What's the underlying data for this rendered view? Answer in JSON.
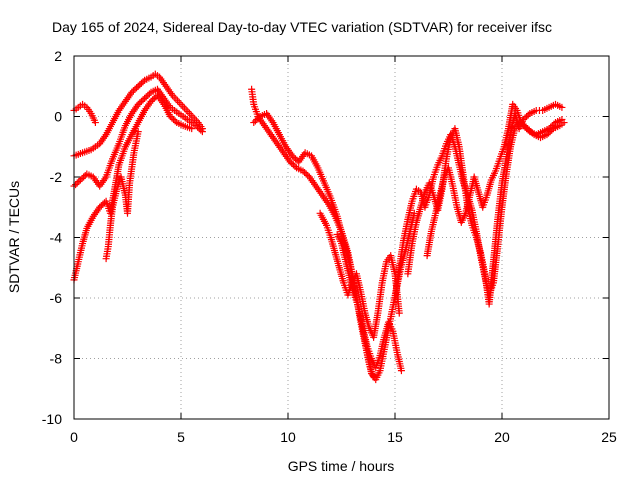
{
  "chart_data": {
    "type": "scatter",
    "title": "Day 165 of 2024, Sidereal Day-to-day VTEC variation (SDTVAR) for receiver ifsc",
    "xlabel": "GPS time / hours",
    "ylabel": "SDTVAR / TECUs",
    "xlim": [
      0,
      25
    ],
    "ylim": [
      -10,
      2
    ],
    "xticks": [
      0,
      5,
      10,
      15,
      20,
      25
    ],
    "yticks": [
      -10,
      -8,
      -6,
      -4,
      -2,
      0,
      2
    ],
    "grid": true,
    "marker": "+",
    "color": "#ff0000",
    "series": [
      {
        "points": [
          [
            0.0,
            0.2
          ],
          [
            0.2,
            0.3
          ],
          [
            0.4,
            0.4
          ],
          [
            0.6,
            0.3
          ],
          [
            0.8,
            0.1
          ],
          [
            1.0,
            -0.2
          ],
          [
            0.0,
            -1.3
          ],
          [
            0.4,
            -1.2
          ],
          [
            0.8,
            -1.1
          ],
          [
            1.2,
            -0.9
          ],
          [
            1.5,
            -0.6
          ],
          [
            1.8,
            -0.2
          ],
          [
            2.1,
            0.2
          ],
          [
            2.4,
            0.5
          ],
          [
            2.7,
            0.8
          ],
          [
            3.0,
            1.0
          ],
          [
            3.3,
            1.2
          ],
          [
            3.6,
            1.3
          ],
          [
            3.8,
            1.4
          ],
          [
            4.0,
            1.3
          ],
          [
            4.3,
            1.0
          ],
          [
            4.6,
            0.7
          ],
          [
            5.0,
            0.4
          ],
          [
            5.4,
            0.1
          ],
          [
            5.8,
            -0.2
          ],
          [
            6.0,
            -0.4
          ],
          [
            0.0,
            -2.3
          ],
          [
            0.3,
            -2.1
          ],
          [
            0.6,
            -1.9
          ],
          [
            0.9,
            -2.0
          ],
          [
            1.2,
            -2.3
          ],
          [
            1.5,
            -2.0
          ],
          [
            1.8,
            -1.4
          ],
          [
            2.1,
            -0.9
          ],
          [
            2.4,
            -0.3
          ],
          [
            2.7,
            0.1
          ],
          [
            3.0,
            0.4
          ],
          [
            3.3,
            0.6
          ],
          [
            3.6,
            0.8
          ],
          [
            3.9,
            0.9
          ],
          [
            4.2,
            0.6
          ],
          [
            4.5,
            0.3
          ],
          [
            4.9,
            0.1
          ],
          [
            5.3,
            -0.1
          ],
          [
            5.7,
            -0.3
          ],
          [
            6.0,
            -0.5
          ],
          [
            0.0,
            -5.4
          ],
          [
            0.2,
            -4.8
          ],
          [
            0.4,
            -4.2
          ],
          [
            0.6,
            -3.7
          ],
          [
            0.9,
            -3.3
          ],
          [
            1.2,
            -3.0
          ],
          [
            1.5,
            -2.8
          ],
          [
            1.7,
            -3.2
          ],
          [
            1.9,
            -2.4
          ],
          [
            2.1,
            -1.6
          ],
          [
            2.4,
            -1.0
          ],
          [
            2.7,
            -0.6
          ],
          [
            3.0,
            -0.2
          ],
          [
            3.3,
            0.2
          ],
          [
            3.6,
            0.5
          ],
          [
            3.9,
            0.7
          ],
          [
            4.2,
            0.4
          ],
          [
            4.5,
            0.0
          ],
          [
            4.8,
            -0.2
          ],
          [
            5.1,
            -0.3
          ],
          [
            5.5,
            -0.4
          ],
          [
            1.5,
            -4.7
          ],
          [
            1.6,
            -4.3
          ],
          [
            1.7,
            -3.6
          ],
          [
            1.8,
            -3.0
          ],
          [
            2.0,
            -2.4
          ],
          [
            2.2,
            -2.0
          ],
          [
            2.4,
            -2.6
          ],
          [
            2.5,
            -3.2
          ],
          [
            2.6,
            -2.2
          ],
          [
            2.8,
            -1.2
          ],
          [
            3.0,
            -0.5
          ]
        ]
      },
      {
        "points": [
          [
            8.3,
            0.9
          ],
          [
            8.4,
            0.4
          ],
          [
            8.6,
            0.0
          ],
          [
            8.9,
            -0.3
          ],
          [
            9.2,
            -0.6
          ],
          [
            9.5,
            -0.9
          ],
          [
            9.8,
            -1.2
          ],
          [
            10.1,
            -1.5
          ],
          [
            10.4,
            -1.7
          ],
          [
            10.7,
            -1.8
          ],
          [
            11.0,
            -2.0
          ],
          [
            11.3,
            -2.3
          ],
          [
            11.6,
            -2.6
          ],
          [
            11.9,
            -2.9
          ],
          [
            12.2,
            -3.3
          ],
          [
            12.5,
            -3.8
          ],
          [
            12.8,
            -4.5
          ],
          [
            13.0,
            -5.2
          ],
          [
            13.2,
            -6.0
          ],
          [
            13.4,
            -6.8
          ],
          [
            13.6,
            -7.5
          ],
          [
            13.8,
            -8.2
          ],
          [
            14.0,
            -8.6
          ],
          [
            8.4,
            -0.2
          ],
          [
            8.7,
            0.0
          ],
          [
            9.0,
            0.1
          ],
          [
            9.3,
            -0.2
          ],
          [
            9.6,
            -0.6
          ],
          [
            9.9,
            -1.0
          ],
          [
            10.2,
            -1.3
          ],
          [
            10.5,
            -1.5
          ],
          [
            10.8,
            -1.2
          ],
          [
            11.1,
            -1.3
          ],
          [
            11.4,
            -1.7
          ],
          [
            11.7,
            -2.2
          ],
          [
            12.0,
            -2.7
          ],
          [
            12.3,
            -3.3
          ],
          [
            12.6,
            -4.1
          ],
          [
            12.9,
            -4.9
          ],
          [
            13.1,
            -5.6
          ],
          [
            13.3,
            -6.3
          ],
          [
            13.5,
            -7.0
          ],
          [
            13.7,
            -7.6
          ],
          [
            13.9,
            -8.0
          ],
          [
            14.1,
            -8.3
          ],
          [
            14.3,
            -7.9
          ],
          [
            14.5,
            -7.3
          ],
          [
            14.7,
            -6.8
          ],
          [
            14.9,
            -7.1
          ],
          [
            15.1,
            -7.8
          ],
          [
            15.3,
            -8.4
          ],
          [
            11.5,
            -3.2
          ],
          [
            11.8,
            -3.6
          ],
          [
            12.0,
            -4.0
          ],
          [
            12.2,
            -4.5
          ],
          [
            12.4,
            -5.0
          ],
          [
            12.6,
            -5.5
          ],
          [
            12.8,
            -5.9
          ],
          [
            13.0,
            -5.5
          ],
          [
            13.2,
            -5.2
          ],
          [
            13.4,
            -5.8
          ],
          [
            13.6,
            -6.5
          ],
          [
            13.8,
            -7.0
          ],
          [
            14.0,
            -7.3
          ],
          [
            14.2,
            -6.5
          ],
          [
            14.4,
            -5.5
          ],
          [
            14.6,
            -4.8
          ],
          [
            14.8,
            -4.6
          ],
          [
            15.0,
            -5.2
          ],
          [
            15.2,
            -6.5
          ],
          [
            12.3,
            -3.9
          ],
          [
            12.5,
            -4.2
          ],
          [
            12.7,
            -4.8
          ],
          [
            12.9,
            -5.4
          ],
          [
            13.1,
            -5.9
          ],
          [
            13.3,
            -6.3
          ],
          [
            13.5,
            -7.0
          ],
          [
            13.7,
            -7.8
          ],
          [
            13.9,
            -8.5
          ],
          [
            14.1,
            -8.7
          ],
          [
            14.3,
            -8.4
          ],
          [
            14.5,
            -7.7
          ],
          [
            14.7,
            -7.0
          ],
          [
            14.9,
            -6.3
          ],
          [
            15.1,
            -5.6
          ],
          [
            15.3,
            -4.9
          ],
          [
            15.5,
            -4.4
          ],
          [
            15.7,
            -3.8
          ],
          [
            15.9,
            -3.2
          ]
        ]
      },
      {
        "points": [
          [
            15.0,
            -6.0
          ],
          [
            15.2,
            -5.0
          ],
          [
            15.4,
            -4.1
          ],
          [
            15.6,
            -3.4
          ],
          [
            15.8,
            -2.8
          ],
          [
            16.0,
            -2.4
          ],
          [
            16.2,
            -2.5
          ],
          [
            16.4,
            -3.0
          ],
          [
            16.6,
            -2.6
          ],
          [
            16.8,
            -2.0
          ],
          [
            17.0,
            -1.6
          ],
          [
            17.2,
            -1.3
          ],
          [
            17.4,
            -0.9
          ],
          [
            17.6,
            -0.6
          ],
          [
            17.8,
            -1.0
          ],
          [
            18.0,
            -1.6
          ],
          [
            18.2,
            -2.2
          ],
          [
            18.4,
            -2.6
          ],
          [
            18.6,
            -3.1
          ],
          [
            18.8,
            -3.8
          ],
          [
            19.0,
            -4.6
          ],
          [
            19.2,
            -5.3
          ],
          [
            19.4,
            -5.9
          ],
          [
            19.6,
            -5.5
          ],
          [
            19.8,
            -4.3
          ],
          [
            20.0,
            -3.0
          ],
          [
            20.2,
            -1.9
          ],
          [
            20.4,
            -1.0
          ],
          [
            20.6,
            -0.4
          ],
          [
            20.8,
            -0.2
          ],
          [
            21.0,
            -0.3
          ],
          [
            21.3,
            -0.5
          ],
          [
            21.6,
            -0.6
          ],
          [
            21.9,
            -0.5
          ],
          [
            22.2,
            -0.4
          ],
          [
            22.5,
            -0.2
          ],
          [
            22.8,
            -0.1
          ],
          [
            15.6,
            -5.2
          ],
          [
            15.8,
            -4.2
          ],
          [
            16.0,
            -3.5
          ],
          [
            16.2,
            -3.0
          ],
          [
            16.4,
            -2.5
          ],
          [
            16.6,
            -2.2
          ],
          [
            16.8,
            -2.6
          ],
          [
            17.0,
            -3.1
          ],
          [
            17.2,
            -2.4
          ],
          [
            17.4,
            -1.4
          ],
          [
            17.6,
            -0.7
          ],
          [
            17.8,
            -0.4
          ],
          [
            18.0,
            -1.0
          ],
          [
            18.2,
            -2.0
          ],
          [
            18.4,
            -3.0
          ],
          [
            18.6,
            -3.6
          ],
          [
            18.8,
            -4.0
          ],
          [
            19.0,
            -4.5
          ],
          [
            19.2,
            -5.2
          ],
          [
            19.4,
            -6.2
          ],
          [
            19.6,
            -4.8
          ],
          [
            19.8,
            -3.4
          ],
          [
            20.0,
            -2.2
          ],
          [
            20.2,
            -1.4
          ],
          [
            20.4,
            -0.6
          ],
          [
            20.6,
            0.1
          ],
          [
            20.8,
            -0.4
          ],
          [
            21.0,
            -0.1
          ],
          [
            21.3,
            0.1
          ],
          [
            21.6,
            0.2
          ],
          [
            21.9,
            0.2
          ],
          [
            22.2,
            0.3
          ],
          [
            22.5,
            0.4
          ],
          [
            22.8,
            0.3
          ],
          [
            16.5,
            -4.6
          ],
          [
            16.7,
            -3.8
          ],
          [
            16.9,
            -3.2
          ],
          [
            17.1,
            -2.6
          ],
          [
            17.3,
            -2.0
          ],
          [
            17.5,
            -1.7
          ],
          [
            17.7,
            -2.3
          ],
          [
            17.9,
            -3.0
          ],
          [
            18.1,
            -3.5
          ],
          [
            18.3,
            -3.2
          ],
          [
            18.5,
            -2.6
          ],
          [
            18.7,
            -2.0
          ],
          [
            18.9,
            -2.5
          ],
          [
            19.1,
            -3.0
          ],
          [
            19.3,
            -2.6
          ],
          [
            19.5,
            -2.1
          ],
          [
            19.7,
            -1.8
          ],
          [
            19.9,
            -1.4
          ],
          [
            20.1,
            -1.0
          ],
          [
            20.3,
            -0.4
          ],
          [
            20.5,
            0.4
          ],
          [
            20.7,
            0.2
          ],
          [
            20.9,
            -0.2
          ],
          [
            21.2,
            -0.4
          ],
          [
            21.5,
            -0.6
          ],
          [
            21.8,
            -0.7
          ],
          [
            22.1,
            -0.6
          ],
          [
            22.4,
            -0.4
          ],
          [
            22.7,
            -0.3
          ],
          [
            22.9,
            -0.2
          ]
        ]
      }
    ]
  }
}
